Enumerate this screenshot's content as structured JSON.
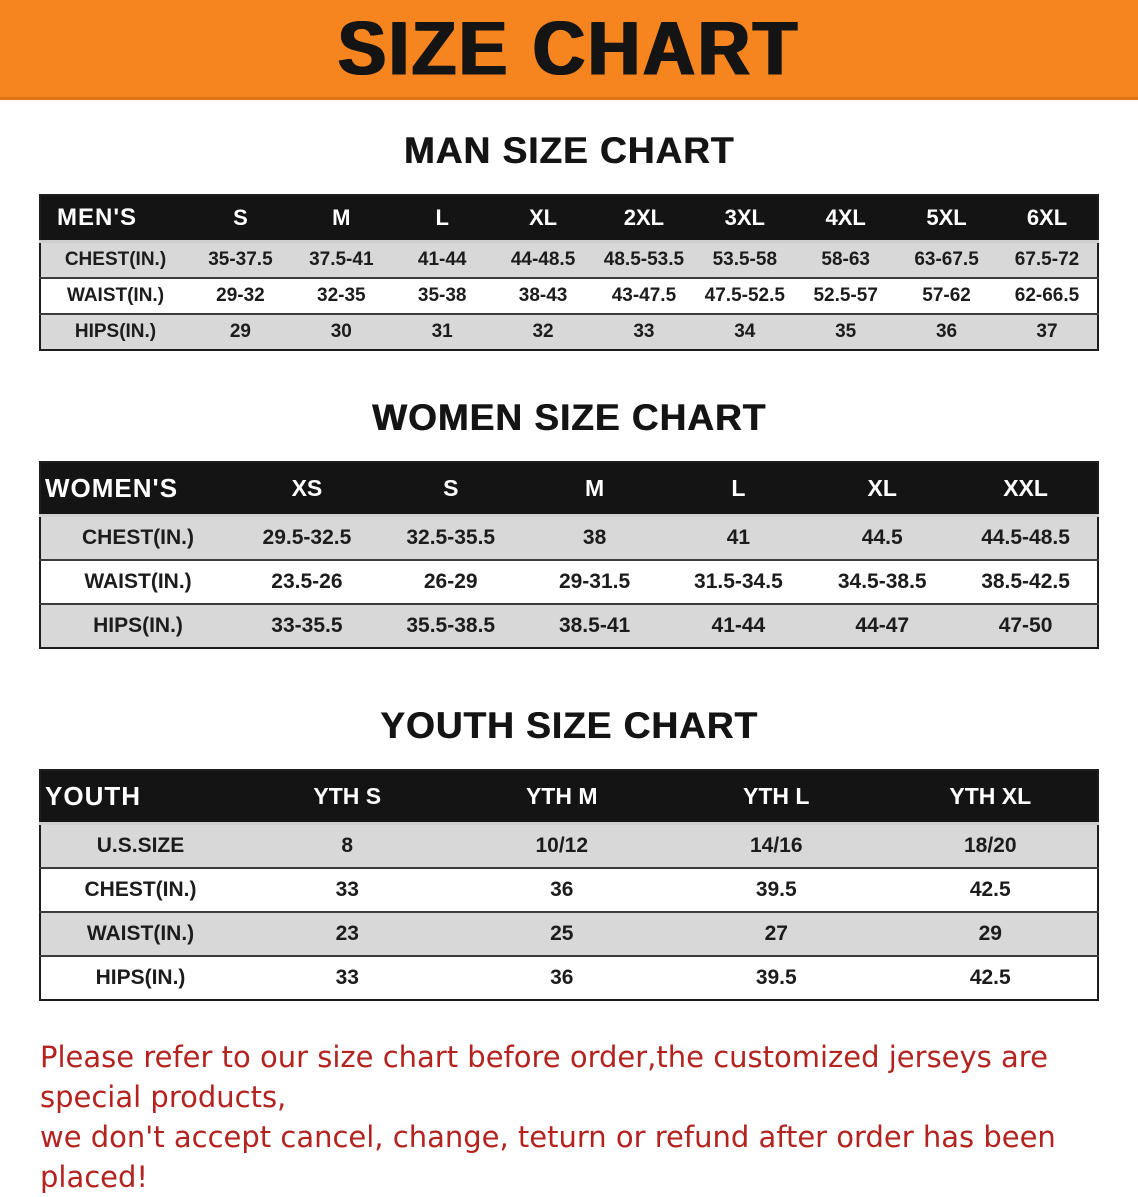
{
  "banner": {
    "title": "SIZE CHART",
    "bg_color": "#f6851f"
  },
  "sections": [
    {
      "id": "men",
      "heading": "MAN SIZE CHART",
      "table": {
        "header": [
          "MEN'S",
          "S",
          "M",
          "L",
          "XL",
          "2XL",
          "3XL",
          "4XL",
          "5XL",
          "6XL"
        ],
        "rows": [
          [
            "CHEST(IN.)",
            "35-37.5",
            "37.5-41",
            "41-44",
            "44-48.5",
            "48.5-53.5",
            "53.5-58",
            "58-63",
            "63-67.5",
            "67.5-72"
          ],
          [
            "WAIST(IN.)",
            "29-32",
            "32-35",
            "35-38",
            "38-43",
            "43-47.5",
            "47.5-52.5",
            "52.5-57",
            "57-62",
            "62-66.5"
          ],
          [
            "HIPS(IN.)",
            "29",
            "30",
            "31",
            "32",
            "33",
            "34",
            "35",
            "36",
            "37"
          ]
        ]
      }
    },
    {
      "id": "women",
      "heading": "WOMEN SIZE CHART",
      "table": {
        "header": [
          "WOMEN'S",
          "XS",
          "S",
          "M",
          "L",
          "XL",
          "XXL"
        ],
        "rows": [
          [
            "CHEST(IN.)",
            "29.5-32.5",
            "32.5-35.5",
            "38",
            "41",
            "44.5",
            "44.5-48.5"
          ],
          [
            "WAIST(IN.)",
            "23.5-26",
            "26-29",
            "29-31.5",
            "31.5-34.5",
            "34.5-38.5",
            "38.5-42.5"
          ],
          [
            "HIPS(IN.)",
            "33-35.5",
            "35.5-38.5",
            "38.5-41",
            "41-44",
            "44-47",
            "47-50"
          ]
        ]
      }
    },
    {
      "id": "youth",
      "heading": "YOUTH SIZE CHART",
      "table": {
        "header": [
          "YOUTH",
          "YTH S",
          "YTH M",
          "YTH L",
          "YTH XL"
        ],
        "rows": [
          [
            "U.S.SIZE",
            "8",
            "10/12",
            "14/16",
            "18/20"
          ],
          [
            "CHEST(IN.)",
            "33",
            "36",
            "39.5",
            "42.5"
          ],
          [
            "WAIST(IN.)",
            "23",
            "25",
            "27",
            "29"
          ],
          [
            "HIPS(IN.)",
            "33",
            "36",
            "39.5",
            "42.5"
          ]
        ]
      }
    }
  ],
  "footer": {
    "color": "#b3231f",
    "lines": [
      "Please refer to our size chart before order,the customized jerseys are special products,",
      "we don't accept cancel, change, teturn or refund after order has been placed!"
    ]
  }
}
